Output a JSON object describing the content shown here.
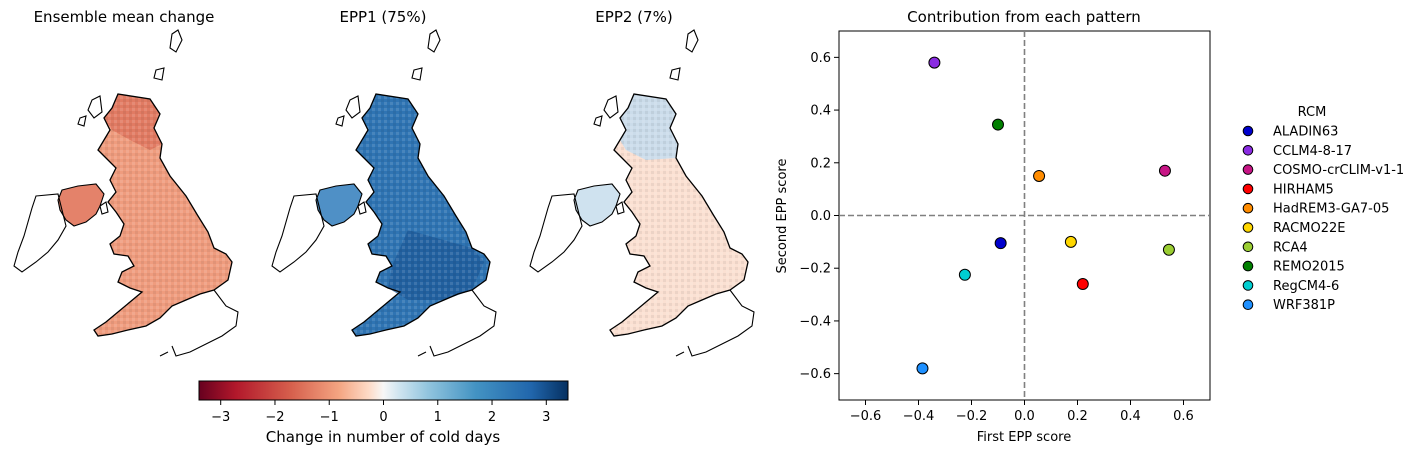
{
  "maps": {
    "panels": [
      {
        "title": "Ensemble mean change"
      },
      {
        "title": "EPP1 (75%)"
      },
      {
        "title": "EPP2 (7%)"
      }
    ],
    "colorbar": {
      "label": "Change in number of cold days",
      "range": [
        -3.4,
        3.4
      ],
      "ticks": [
        "−3",
        "−2",
        "−1",
        "0",
        "1",
        "2",
        "3"
      ],
      "tick_values": [
        -3,
        -2,
        -1,
        0,
        1,
        2,
        3
      ],
      "colormap": "RdBu"
    }
  },
  "chart_data": {
    "type": "scatter",
    "title": "Contribution from each pattern",
    "xlabel": "First EPP score",
    "ylabel": "Second EPP score",
    "xlim": [
      -0.7,
      0.7
    ],
    "ylim": [
      -0.7,
      0.7
    ],
    "x_ticks": [
      "−0.6",
      "−0.4",
      "−0.2",
      "0.0",
      "0.2",
      "0.4",
      "0.6"
    ],
    "x_tick_values": [
      -0.6,
      -0.4,
      -0.2,
      0.0,
      0.2,
      0.4,
      0.6
    ],
    "y_ticks": [
      "−0.6",
      "−0.4",
      "−0.2",
      "0.0",
      "0.2",
      "0.4",
      "0.6"
    ],
    "y_tick_values": [
      -0.6,
      -0.4,
      -0.2,
      0.0,
      0.2,
      0.4,
      0.6
    ],
    "reference_lines": {
      "x": 0,
      "y": 0,
      "style": "dashed",
      "color": "#808080"
    },
    "legend": {
      "title": "RCM",
      "placement": "right-outside"
    },
    "series": [
      {
        "name": "ALADIN63",
        "color": "#0000cd",
        "x": -0.09,
        "y": -0.105
      },
      {
        "name": "CCLM4-8-17",
        "color": "#8a2be2",
        "x": -0.34,
        "y": 0.58
      },
      {
        "name": "COSMO-crCLIM-v1-1",
        "color": "#c71585",
        "x": 0.53,
        "y": 0.17
      },
      {
        "name": "HIRHAM5",
        "color": "#ff0000",
        "x": 0.22,
        "y": -0.26
      },
      {
        "name": "HadREM3-GA7-05",
        "color": "#ff8c00",
        "x": 0.055,
        "y": 0.15
      },
      {
        "name": "RACMO22E",
        "color": "#ffd700",
        "x": 0.175,
        "y": -0.1
      },
      {
        "name": "RCA4",
        "color": "#9acd32",
        "x": 0.545,
        "y": -0.13
      },
      {
        "name": "REMO2015",
        "color": "#008000",
        "x": -0.1,
        "y": 0.345
      },
      {
        "name": "RegCM4-6",
        "color": "#00ced1",
        "x": -0.225,
        "y": -0.225
      },
      {
        "name": "WRF381P",
        "color": "#1e90ff",
        "x": -0.385,
        "y": -0.58
      }
    ]
  }
}
